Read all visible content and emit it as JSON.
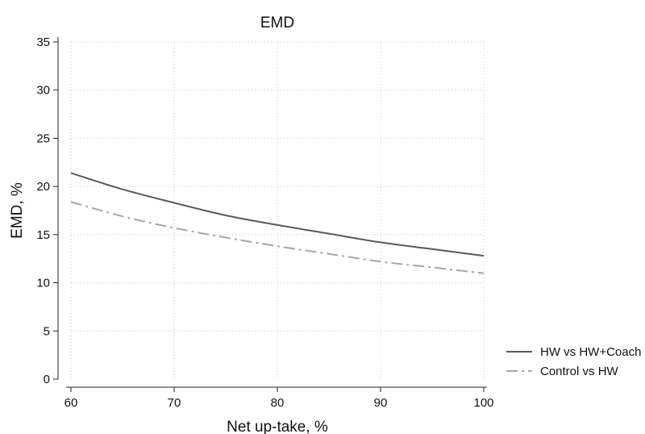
{
  "chart_data": {
    "type": "line",
    "title": "EMD",
    "xlabel": "Net up-take, %",
    "ylabel": "EMD, %",
    "xlim": [
      60,
      100
    ],
    "ylim": [
      0,
      35
    ],
    "xticks": [
      60,
      70,
      80,
      90,
      100
    ],
    "yticks": [
      0,
      5,
      10,
      15,
      20,
      25,
      30,
      35
    ],
    "grid": true,
    "legend_position": "right",
    "x": [
      60,
      65,
      70,
      75,
      80,
      85,
      90,
      95,
      100
    ],
    "series": [
      {
        "name": "HW vs HW+Coach",
        "values": [
          21.4,
          19.7,
          18.3,
          17.0,
          16.0,
          15.1,
          14.2,
          13.5,
          12.8
        ],
        "color": "#5a5a5a",
        "dash": "solid"
      },
      {
        "name": "Control vs HW",
        "values": [
          18.4,
          16.9,
          15.7,
          14.7,
          13.8,
          13.0,
          12.2,
          11.6,
          11.0
        ],
        "color": "#a6a6a6",
        "dash": "dash-dot"
      }
    ]
  }
}
